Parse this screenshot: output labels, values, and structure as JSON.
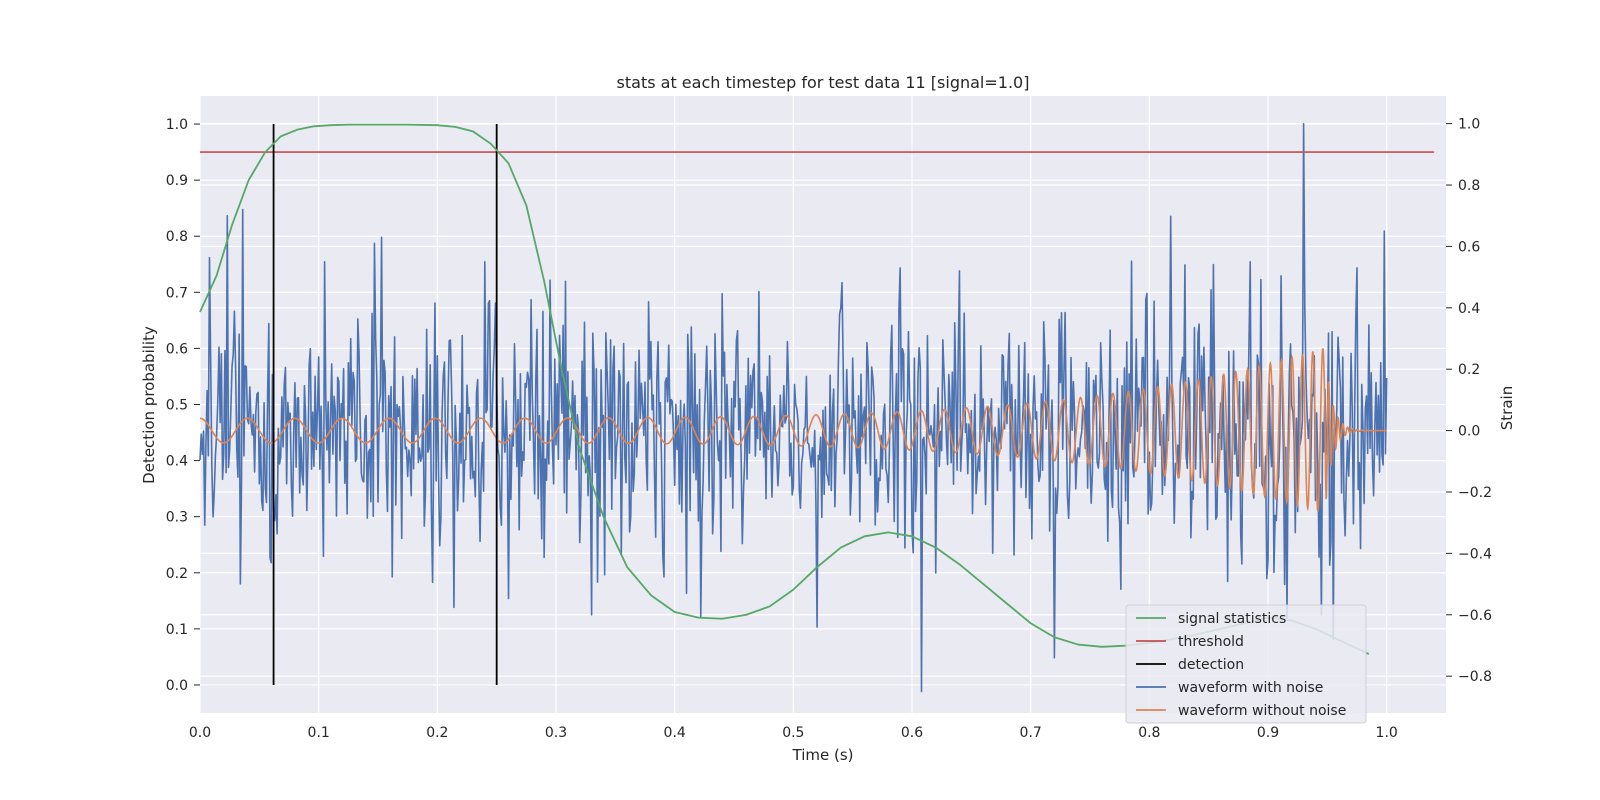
{
  "chart_data": {
    "type": "line",
    "title": "stats at each timestep for test data 11 [signal=1.0]",
    "xlabel": "Time (s)",
    "ylabel": "Detection probability",
    "y2label": "Strain",
    "xlim": [
      0.0,
      1.05
    ],
    "ylim": [
      -0.05,
      1.05
    ],
    "y2lim": [
      -0.92,
      1.09
    ],
    "xticks": [
      "0.0",
      "0.1",
      "0.2",
      "0.3",
      "0.4",
      "0.5",
      "0.6",
      "0.7",
      "0.8",
      "0.9",
      "1.0"
    ],
    "yticks": [
      "0.0",
      "0.1",
      "0.2",
      "0.3",
      "0.4",
      "0.5",
      "0.6",
      "0.7",
      "0.8",
      "0.9",
      "1.0"
    ],
    "y2ticks": [
      "−0.8",
      "−0.6",
      "−0.4",
      "−0.2",
      "0.0",
      "0.2",
      "0.4",
      "0.6",
      "0.8",
      "1.0"
    ],
    "grid": true,
    "legend_position": "lower-right",
    "colors": {
      "background": "#eaeaf2",
      "grid": "#ffffff",
      "signal": "#55a868",
      "threshold": "#c44e52",
      "detection": "#000000",
      "noisy": "#4c72b0",
      "clean": "#dd8452"
    },
    "signal_statistics": {
      "name": "signal statistics",
      "x": [
        0.0,
        0.014,
        0.027,
        0.041,
        0.055,
        0.068,
        0.082,
        0.096,
        0.11,
        0.125,
        0.15,
        0.175,
        0.2,
        0.215,
        0.23,
        0.245,
        0.26,
        0.275,
        0.29,
        0.305,
        0.32,
        0.34,
        0.36,
        0.38,
        0.4,
        0.42,
        0.44,
        0.46,
        0.48,
        0.5,
        0.52,
        0.54,
        0.56,
        0.58,
        0.6,
        0.62,
        0.64,
        0.66,
        0.68,
        0.7,
        0.72,
        0.74,
        0.76,
        0.78,
        0.8,
        0.82,
        0.84,
        0.86,
        0.88,
        0.9,
        0.92,
        0.94,
        0.96,
        0.985
      ],
      "values": [
        0.665,
        0.73,
        0.82,
        0.9,
        0.95,
        0.978,
        0.99,
        0.996,
        0.998,
        0.999,
        0.999,
        0.999,
        0.998,
        0.995,
        0.987,
        0.965,
        0.93,
        0.855,
        0.72,
        0.56,
        0.42,
        0.3,
        0.21,
        0.16,
        0.13,
        0.12,
        0.118,
        0.125,
        0.14,
        0.17,
        0.21,
        0.245,
        0.265,
        0.272,
        0.265,
        0.245,
        0.215,
        0.18,
        0.145,
        0.11,
        0.085,
        0.072,
        0.068,
        0.07,
        0.075,
        0.082,
        0.09,
        0.1,
        0.11,
        0.12,
        0.115,
        0.1,
        0.08,
        0.055
      ]
    },
    "threshold": {
      "name": "threshold",
      "value": 0.95,
      "x_range": [
        0.0,
        1.04
      ]
    },
    "detection": {
      "name": "detection",
      "x": [
        0.062,
        0.25
      ],
      "y_range": [
        0.0,
        1.0
      ]
    },
    "waveform_with_noise": {
      "name": "waveform with noise",
      "x_range": [
        0.0,
        1.0
      ],
      "approx_std": 0.2,
      "peaks": [
        {
          "x": 0.023,
          "y": 0.7
        },
        {
          "x": 0.036,
          "y": 0.72
        },
        {
          "x": 0.105,
          "y": 0.55
        },
        {
          "x": 0.147,
          "y": 0.61
        },
        {
          "x": 0.153,
          "y": 0.63
        },
        {
          "x": 0.24,
          "y": 0.55
        },
        {
          "x": 0.295,
          "y": 0.49
        },
        {
          "x": 0.33,
          "y": -0.6
        },
        {
          "x": 0.41,
          "y": -0.53
        },
        {
          "x": 0.52,
          "y": -0.64
        },
        {
          "x": 0.59,
          "y": 0.53
        },
        {
          "x": 0.608,
          "y": -0.85
        },
        {
          "x": 0.64,
          "y": 0.52
        },
        {
          "x": 0.72,
          "y": -0.74
        },
        {
          "x": 0.885,
          "y": 0.55
        },
        {
          "x": 0.93,
          "y": 1.0
        },
        {
          "x": 0.945,
          "y": -0.6
        },
        {
          "x": 0.955,
          "y": -0.68
        },
        {
          "x": 0.975,
          "y": 0.53
        },
        {
          "x": 0.998,
          "y": 0.65
        }
      ]
    },
    "waveform_without_noise": {
      "name": "waveform without noise",
      "x_range": [
        0.0,
        1.0
      ],
      "merger_time": 0.948,
      "amplitude_start": 0.04,
      "amplitude_peak": 0.27,
      "frequency_start_hz": 25,
      "frequency_end_hz": 120
    },
    "legend": [
      "signal statistics",
      "threshold",
      "detection",
      "waveform with noise",
      "waveform without noise"
    ]
  }
}
